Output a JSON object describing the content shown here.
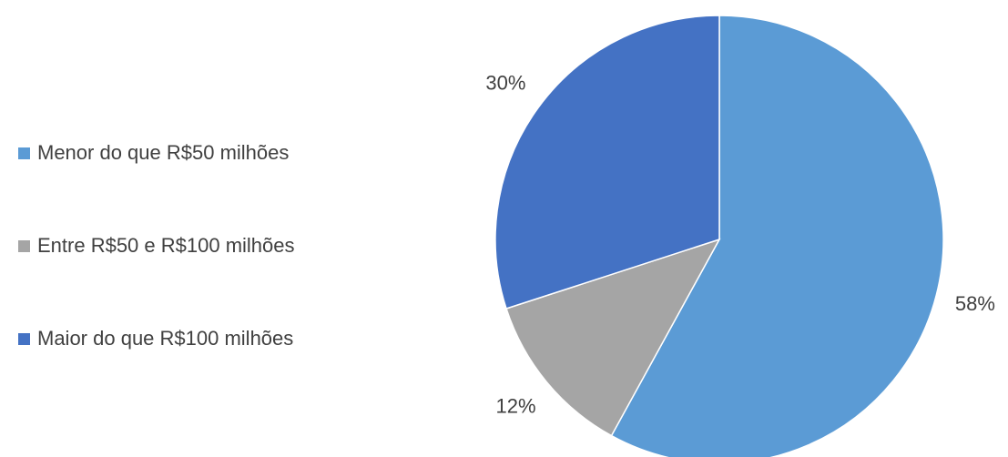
{
  "chart_data": {
    "type": "pie",
    "categories": [
      "Menor do que R$50 milhões",
      "Entre R$50 e R$100 milhões",
      "Maior do que R$100 milhões"
    ],
    "values": [
      58,
      12,
      30
    ],
    "data_labels": [
      "58%",
      "12%",
      "30%"
    ],
    "colors": [
      "#5b9bd5",
      "#a5a5a5",
      "#4472c4"
    ],
    "legend_position": "left",
    "start_angle_deg": 0,
    "direction": "clockwise"
  }
}
